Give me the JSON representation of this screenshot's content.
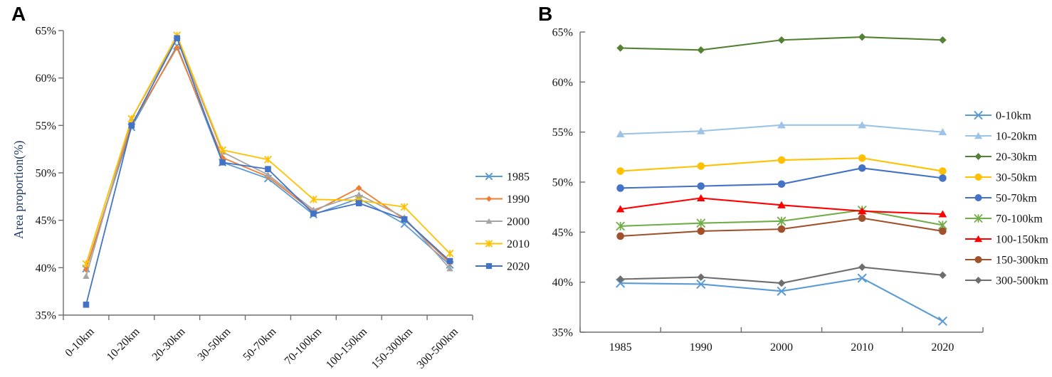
{
  "figure": {
    "background": "#ffffff",
    "axis_color": "#6e6e6e",
    "tick_label_color": "#111111"
  },
  "chart_data": [
    {
      "type": "line",
      "panel_label": "A",
      "title": "",
      "xlabel": "",
      "ylabel": "Area proportion(%)",
      "ylabel_color": "#1F3864",
      "ylim": [
        35,
        65
      ],
      "yticks": [
        35,
        40,
        45,
        50,
        55,
        60,
        65
      ],
      "ytick_labels": [
        "35%",
        "40%",
        "45%",
        "50%",
        "55%",
        "60%",
        "65%"
      ],
      "grid": false,
      "legend_position": "right",
      "categories": [
        "0-10km",
        "10-20km",
        "20-30km",
        "30-50km",
        "50-70km",
        "70-100km",
        "100-150km",
        "150-300km",
        "300-500km"
      ],
      "series": [
        {
          "name": "1985",
          "color": "#5B9BD5",
          "marker": "x",
          "values": [
            39.9,
            54.8,
            63.4,
            51.1,
            49.4,
            45.6,
            47.3,
            44.6,
            40.3
          ]
        },
        {
          "name": "1990",
          "color": "#ED7D31",
          "marker": "diamond",
          "values": [
            39.8,
            55.1,
            63.2,
            51.6,
            49.6,
            45.9,
            48.4,
            45.1,
            40.5
          ]
        },
        {
          "name": "2000",
          "color": "#A5A5A5",
          "marker": "triangle",
          "values": [
            39.1,
            55.7,
            64.2,
            52.2,
            49.8,
            46.1,
            47.7,
            45.3,
            39.9
          ]
        },
        {
          "name": "2010",
          "color": "#FFC000",
          "marker": "star",
          "values": [
            40.4,
            55.7,
            64.5,
            52.4,
            51.4,
            47.2,
            47.1,
            46.4,
            41.5
          ]
        },
        {
          "name": "2020",
          "color": "#4472C4",
          "marker": "square",
          "values": [
            36.1,
            55.0,
            64.2,
            51.1,
            50.4,
            45.7,
            46.8,
            45.1,
            40.7
          ]
        }
      ]
    },
    {
      "type": "line",
      "panel_label": "B",
      "title": "",
      "xlabel": "",
      "ylabel": "",
      "ylim": [
        35,
        65
      ],
      "yticks": [
        35,
        40,
        45,
        50,
        55,
        60,
        65
      ],
      "ytick_labels": [
        "35%",
        "40%",
        "45%",
        "50%",
        "55%",
        "60%",
        "65%"
      ],
      "grid": false,
      "legend_position": "right",
      "categories": [
        "1985",
        "1990",
        "2000",
        "2010",
        "2020"
      ],
      "series": [
        {
          "name": "0-10km",
          "color": "#5B9BD5",
          "marker": "x",
          "values": [
            39.9,
            39.8,
            39.1,
            40.4,
            36.1
          ]
        },
        {
          "name": "10-20km",
          "color": "#9DC3E6",
          "marker": "triangle",
          "values": [
            54.8,
            55.1,
            55.7,
            55.7,
            55.0
          ]
        },
        {
          "name": "20-30km",
          "color": "#548235",
          "marker": "diamond",
          "values": [
            63.4,
            63.2,
            64.2,
            64.5,
            64.2
          ]
        },
        {
          "name": "30-50km",
          "color": "#FFC000",
          "marker": "circle",
          "values": [
            51.1,
            51.6,
            52.2,
            52.4,
            51.1
          ]
        },
        {
          "name": "50-70km",
          "color": "#4472C4",
          "marker": "circle",
          "values": [
            49.4,
            49.6,
            49.8,
            51.4,
            50.4
          ]
        },
        {
          "name": "70-100km",
          "color": "#70AD47",
          "marker": "star",
          "values": [
            45.6,
            45.9,
            46.1,
            47.2,
            45.7
          ]
        },
        {
          "name": "100-150km",
          "color": "#FF0000",
          "marker": "triangle",
          "values": [
            47.3,
            48.4,
            47.7,
            47.1,
            46.8
          ]
        },
        {
          "name": "150-300km",
          "color": "#A0522D",
          "marker": "circle",
          "values": [
            44.6,
            45.1,
            45.3,
            46.4,
            45.1
          ]
        },
        {
          "name": "300-500km",
          "color": "#6E6E6E",
          "marker": "diamond",
          "values": [
            40.3,
            40.5,
            39.9,
            41.5,
            40.7
          ]
        }
      ]
    }
  ]
}
